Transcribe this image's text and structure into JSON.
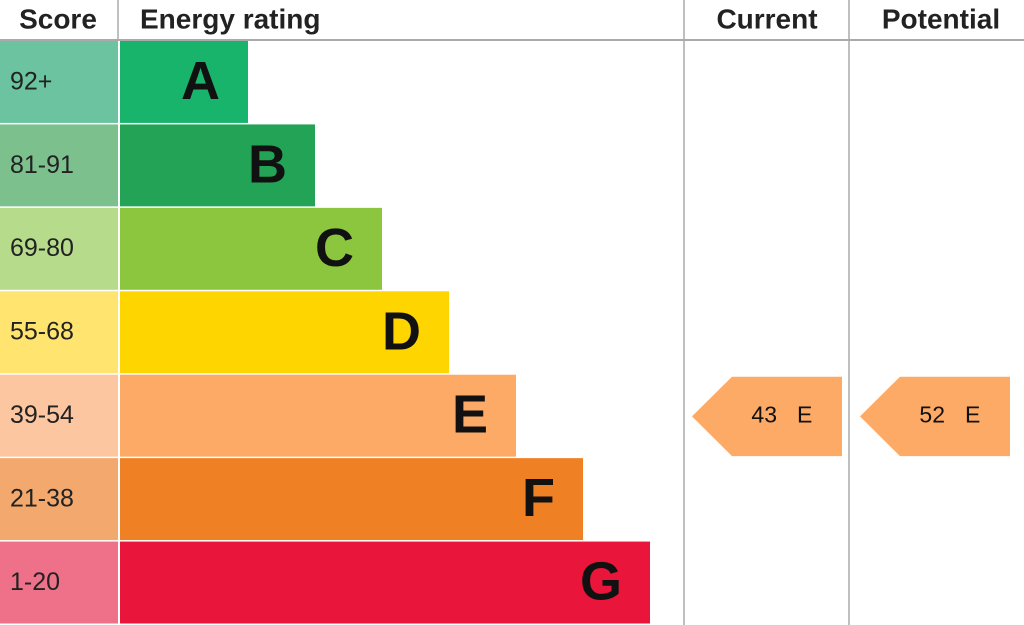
{
  "header": {
    "score": "Score",
    "rating": "Energy rating",
    "current": "Current",
    "potential": "Potential"
  },
  "rows": [
    {
      "score": "92+",
      "letter": "A",
      "color": "#19b46b",
      "score_color": "#6cc3a0"
    },
    {
      "score": "81-91",
      "letter": "B",
      "color": "#22a356",
      "score_color": "#7cc08e"
    },
    {
      "score": "69-80",
      "letter": "C",
      "color": "#8cc63f",
      "score_color": "#b5db8b"
    },
    {
      "score": "55-68",
      "letter": "D",
      "color": "#ffd500",
      "score_color": "#ffe46f"
    },
    {
      "score": "39-54",
      "letter": "E",
      "color": "#fcaa65",
      "score_color": "#fcc6a0"
    },
    {
      "score": "21-38",
      "letter": "F",
      "color": "#ef8023",
      "score_color": "#f3a86d"
    },
    {
      "score": "1-20",
      "letter": "G",
      "color": "#e9153b",
      "score_color": "#ef7089"
    }
  ],
  "current": {
    "score": 43,
    "rating": "E"
  },
  "potential": {
    "score": 52,
    "rating": "E"
  },
  "arrow_color": "#fcaa65"
}
